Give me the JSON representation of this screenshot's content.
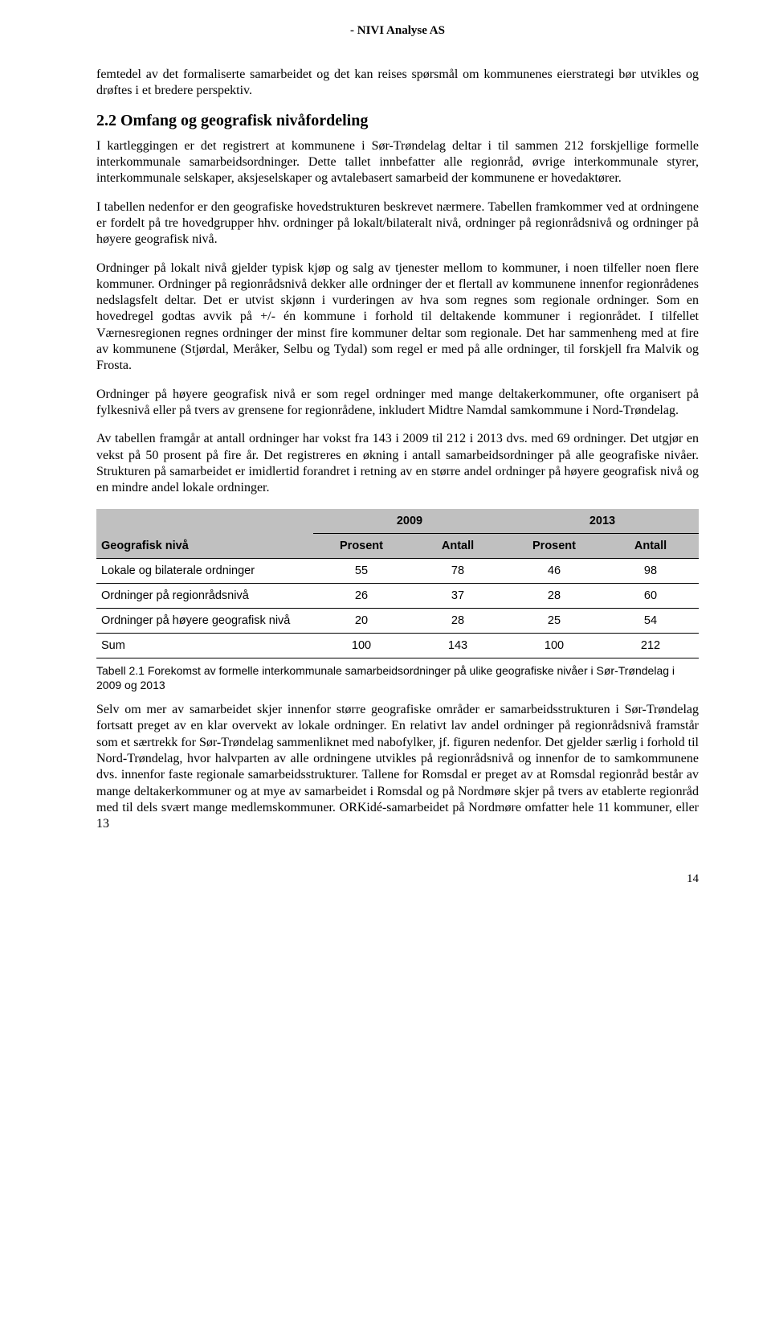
{
  "header": "- NIVI Analyse AS",
  "pageNumber": "14",
  "paragraphs": {
    "intro": "femtedel av det formaliserte samarbeidet og det kan reises spørsmål om kommunenes eierstrategi bør utvikles og drøftes i et bredere perspektiv.",
    "heading": "2.2 Omfang og geografisk nivåfordeling",
    "p1": "I kartleggingen er det registrert at kommunene i Sør-Trøndelag deltar i til sammen 212 forskjellige formelle interkommunale samarbeidsordninger. Dette tallet innbefatter alle regionråd, øvrige interkommunale styrer, interkommunale selskaper, aksjeselskaper og avtalebasert samarbeid der kommunene er hovedaktører.",
    "p2": "I tabellen nedenfor er den geografiske hovedstrukturen beskrevet nærmere. Tabellen framkommer ved at ordningene er fordelt på tre hovedgrupper hhv. ordninger på lokalt/bilateralt nivå, ordninger på regionrådsnivå og ordninger på høyere geografisk nivå.",
    "p3": "Ordninger på lokalt nivå gjelder typisk kjøp og salg av tjenester mellom to kommuner, i noen tilfeller noen flere kommuner. Ordninger på regionrådsnivå dekker alle ordninger der et flertall av kommunene innenfor regionrådenes nedslagsfelt deltar. Det er utvist skjønn i vurderingen av hva som regnes som regionale ordninger. Som en hovedregel godtas avvik på +/- én kommune i forhold til deltakende kommuner i regionrådet. I tilfellet Værnesregionen regnes ordninger der minst fire kommuner deltar som regionale. Det har sammenheng med at fire av kommunene (Stjørdal, Meråker, Selbu og Tydal) som regel er med på alle ordninger, til forskjell fra Malvik og Frosta.",
    "p4": "Ordninger på høyere geografisk nivå er som regel ordninger med mange deltakerkommuner, ofte organisert på fylkesnivå eller på tvers av grensene for regionrådene, inkludert Midtre Namdal samkommune i Nord-Trøndelag.",
    "p5": "Av tabellen framgår at antall ordninger har vokst fra 143 i 2009 til 212 i 2013 dvs. med 69 ordninger. Det utgjør en vekst på 50 prosent på fire år. Det registreres en økning i antall samarbeidsordninger på alle geografiske nivåer. Strukturen på samarbeidet er imidlertid forandret i retning av en større andel ordninger på høyere geografisk nivå og en mindre andel lokale ordninger.",
    "p6": "Selv om mer av samarbeidet skjer innenfor større geografiske områder er samarbeidsstrukturen i Sør-Trøndelag fortsatt preget av en klar overvekt av lokale ordninger. En relativt lav andel ordninger på regionrådsnivå framstår som et særtrekk for Sør-Trøndelag sammenliknet med nabofylker, jf. figuren nedenfor. Det gjelder særlig i forhold til Nord-Trøndelag, hvor halvparten av alle ordningene utvikles på regionrådsnivå og innenfor de to samkommunene dvs. innenfor faste regionale samarbeidsstrukturer. Tallene for Romsdal er preget av at Romsdal regionråd består av mange deltakerkommuner og at mye av samarbeidet i Romsdal og på Nordmøre skjer på tvers av etablerte regionråd med til dels svært mange medlemskommuner. ORKidé-samarbeidet på Nordmøre omfatter hele 11 kommuner, eller 13"
  },
  "table": {
    "caption": "Tabell 2.1 Forekomst av formelle interkommunale samarbeidsordninger på ulike geografiske nivåer i Sør-Trøndelag i 2009 og 2013",
    "super": {
      "y2009": "2009",
      "y2013": "2013"
    },
    "head": {
      "label": "Geografisk nivå",
      "prosent": "Prosent",
      "antall": "Antall"
    },
    "rows": [
      {
        "label": "Lokale og bilaterale ordninger",
        "p09": "55",
        "a09": "78",
        "p13": "46",
        "a13": "98"
      },
      {
        "label": "Ordninger på regionrådsnivå",
        "p09": "26",
        "a09": "37",
        "p13": "28",
        "a13": "60"
      },
      {
        "label": "Ordninger på høyere geografisk nivå",
        "p09": "20",
        "a09": "28",
        "p13": "25",
        "a13": "54"
      },
      {
        "label": "Sum",
        "p09": "100",
        "a09": "143",
        "p13": "100",
        "a13": "212"
      }
    ]
  }
}
